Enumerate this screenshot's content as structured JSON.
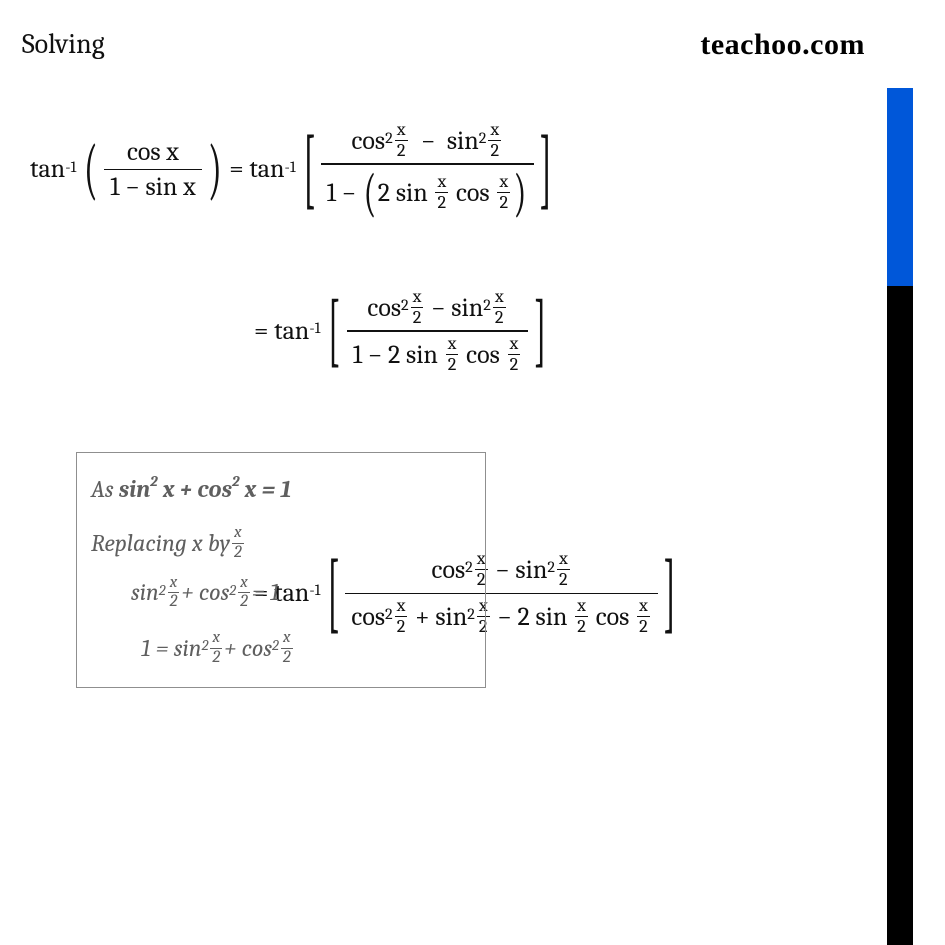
{
  "header": {
    "title": "Solving",
    "brand": "teachoo.com"
  },
  "colors": {
    "side_blue": "#0057d9",
    "side_black": "#000000",
    "text": "#111111",
    "hint_border": "#8f8f8f",
    "hint_text": "#5f5f5f",
    "background": "#ffffff"
  },
  "glyphs": {
    "tan": "tan",
    "inv": "-1",
    "cos": "cos",
    "sin": "sin",
    "x": "x",
    "one": "1",
    "two": "2",
    "minus": "−",
    "plus": "+",
    "eq": "=",
    "lparen": "(",
    "rparen": ")",
    "lbrack": "[",
    "rbrack": "]"
  },
  "hint": {
    "line1_a": "As ",
    "line1_b": "sin",
    "line1_c": " x + cos",
    "line1_d": " x = 1",
    "line2_a": "Replacing x by ",
    "sq": "2",
    "xi": "x",
    "half_num": "x",
    "half_den": "2",
    "line3_mid": " + cos",
    "line3_end": " = 1",
    "line4_a": "1 = sin",
    "line4_mid": " + cos"
  }
}
